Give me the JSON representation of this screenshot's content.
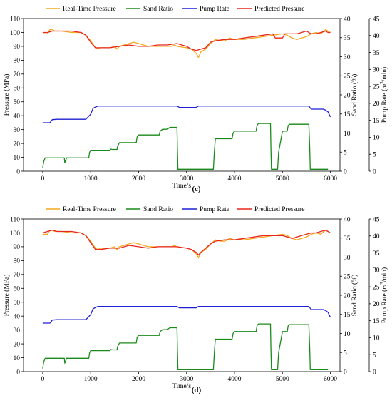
{
  "colors": {
    "real_time_pressure": "#f4a81d",
    "sand_ratio": "#1a8a1a",
    "pump_rate": "#1f1fd6",
    "predicted_pressure": "#e8261c"
  },
  "chart_data": [
    {
      "type": "line",
      "panel_label": "(c)",
      "xlabel": "Time/s",
      "ylabel_left": "Pressure (MPa)",
      "ylabel_right": "Sand Ratio (%)",
      "ylabel_right2_prefix": "Pump Rate (",
      "ylabel_right2_unit": "m",
      "ylabel_right2_sup": "3",
      "ylabel_right2_suffix": "/min)",
      "xlim": [
        -400,
        6200
      ],
      "xticks": [
        0,
        1000,
        2000,
        3000,
        4000,
        5000,
        6000
      ],
      "ylim_left": [
        0,
        110
      ],
      "yticks_left": [
        0,
        10,
        20,
        30,
        40,
        50,
        60,
        70,
        80,
        90,
        100,
        110
      ],
      "ylim_right": [
        0,
        40
      ],
      "yticks_right": [
        0,
        5,
        10,
        15,
        20,
        25,
        30,
        35,
        40
      ],
      "ylim_right2": [
        0,
        45
      ],
      "yticks_right2": [
        0,
        5,
        10,
        15,
        20,
        25,
        30,
        35,
        40,
        45
      ],
      "legend_position": "top",
      "series": [
        {
          "name": "Real-Time Pressure",
          "axis": "left",
          "color_key": "real_time_pressure",
          "x": [
            0,
            100,
            150,
            200,
            250,
            300,
            400,
            600,
            800,
            900,
            1000,
            1100,
            1150,
            1200,
            1400,
            1500,
            1550,
            1600,
            1800,
            1900,
            2000,
            2100,
            2200,
            2300,
            2500,
            2700,
            2750,
            2800,
            3000,
            3100,
            3200,
            3250,
            3300,
            3400,
            3500,
            3600,
            3700,
            3800,
            3900,
            4000,
            4100,
            4200,
            4400,
            4600,
            4800,
            5000,
            5100,
            5200,
            5300,
            5400,
            5500,
            5600,
            5700,
            5800,
            5900,
            5950,
            6000
          ],
          "y": [
            99,
            99,
            102,
            102,
            101,
            101,
            101,
            100,
            100,
            98,
            94,
            89,
            88,
            89,
            89,
            90,
            88,
            90,
            92,
            93,
            92,
            91,
            90,
            90,
            90,
            90,
            91,
            90,
            89,
            88,
            85,
            82,
            86,
            88,
            92,
            95,
            94,
            94,
            96,
            95,
            95,
            95,
            96,
            97,
            98,
            99,
            98,
            96,
            95,
            96,
            97,
            99,
            100,
            99,
            102,
            101,
            100
          ]
        },
        {
          "name": "Predicted Pressure",
          "axis": "left",
          "color_key": "predicted_pressure",
          "x": [
            0,
            100,
            200,
            300,
            400,
            600,
            800,
            900,
            1000,
            1100,
            1200,
            1400,
            1600,
            1800,
            2000,
            2200,
            2400,
            2600,
            2800,
            3000,
            3100,
            3200,
            3300,
            3400,
            3500,
            3600,
            3800,
            4000,
            4200,
            4400,
            4600,
            4800,
            4850,
            5000,
            5050,
            5100,
            5200,
            5300,
            5400,
            5500,
            5600,
            5700,
            5800,
            5900,
            5950,
            6000
          ],
          "y": [
            100,
            100,
            101,
            101,
            101,
            101,
            100,
            98,
            93,
            89,
            89,
            89,
            90,
            91,
            90,
            90,
            91,
            91,
            92,
            90,
            88,
            87,
            88,
            89,
            93,
            94,
            95,
            95,
            96,
            97,
            98,
            99,
            96,
            96,
            99,
            99,
            99,
            99,
            100,
            101,
            99,
            99,
            100,
            101,
            100,
            100
          ]
        },
        {
          "name": "Sand Ratio",
          "axis": "right",
          "color_key": "sand_ratio",
          "x": [
            0,
            20,
            50,
            100,
            450,
            460,
            500,
            550,
            960,
            980,
            1000,
            1400,
            1420,
            1450,
            1550,
            1560,
            1600,
            1950,
            1970,
            2000,
            2430,
            2450,
            2500,
            2600,
            2650,
            2800,
            2810,
            2820,
            3560,
            3580,
            3600,
            3950,
            3970,
            4000,
            4450,
            4470,
            4500,
            4750,
            4760,
            4770,
            4900,
            4920,
            5000,
            5100,
            5120,
            5150,
            5550,
            5570,
            5580,
            5900,
            5950
          ],
          "y": [
            0.8,
            2.5,
            3.5,
            3.5,
            3.5,
            2.2,
            3.5,
            3.5,
            3.5,
            5,
            5.5,
            5.5,
            5.8,
            5.7,
            5.7,
            6.5,
            7.5,
            7.5,
            9,
            9.5,
            9.5,
            10.5,
            11,
            11,
            11.5,
            11.5,
            6,
            0.5,
            0.5,
            5,
            8.5,
            8.5,
            10,
            10.5,
            10.5,
            12,
            12.5,
            12.5,
            6,
            0.5,
            0.5,
            5,
            10.5,
            10.5,
            12,
            12.3,
            12.3,
            6,
            0.5,
            0.5,
            0.5
          ]
        },
        {
          "name": "Pump Rate",
          "axis": "right2",
          "color_key": "pump_rate",
          "x": [
            0,
            150,
            200,
            300,
            900,
            1000,
            1050,
            1100,
            1150,
            2800,
            2850,
            3200,
            3250,
            3400,
            5550,
            5600,
            5850,
            5900,
            5950,
            6000
          ],
          "y": [
            14.3,
            14.3,
            15.2,
            15.3,
            15.3,
            16.8,
            18.5,
            18.9,
            19.2,
            19.2,
            18.8,
            18.8,
            19.2,
            19.2,
            19.2,
            18.3,
            18.3,
            18.0,
            17.5,
            16.0
          ]
        }
      ]
    },
    {
      "type": "line",
      "panel_label": "(d)",
      "xlabel": "Time/s",
      "ylabel_left": "Pressure (MPa)",
      "ylabel_right": "Sand Ratio (%)",
      "ylabel_right2_prefix": "Pump Rate (",
      "ylabel_right2_unit": "m",
      "ylabel_right2_sup": "3",
      "ylabel_right2_suffix": "/min)",
      "xlim": [
        -400,
        6200
      ],
      "xticks": [
        0,
        1000,
        2000,
        3000,
        4000,
        5000,
        6000
      ],
      "ylim_left": [
        0,
        110
      ],
      "yticks_left": [
        0,
        10,
        20,
        30,
        40,
        50,
        60,
        70,
        80,
        90,
        100,
        110
      ],
      "ylim_right": [
        0,
        40
      ],
      "yticks_right": [
        0,
        5,
        10,
        15,
        20,
        25,
        30,
        35,
        40
      ],
      "ylim_right2": [
        0,
        45
      ],
      "yticks_right2": [
        0,
        5,
        10,
        15,
        20,
        25,
        30,
        35,
        40,
        45
      ],
      "legend_position": "top",
      "series": [
        {
          "name": "Real-Time Pressure",
          "axis": "left",
          "color_key": "real_time_pressure",
          "x": [
            0,
            100,
            150,
            200,
            250,
            300,
            400,
            600,
            800,
            900,
            1000,
            1100,
            1150,
            1200,
            1400,
            1500,
            1550,
            1600,
            1800,
            1900,
            2000,
            2100,
            2200,
            2300,
            2500,
            2700,
            2750,
            2800,
            3000,
            3100,
            3200,
            3250,
            3300,
            3400,
            3500,
            3600,
            3700,
            3800,
            3900,
            4000,
            4100,
            4200,
            4400,
            4600,
            4800,
            5000,
            5100,
            5200,
            5300,
            5400,
            5500,
            5600,
            5700,
            5800,
            5900,
            5950,
            6000
          ],
          "y": [
            99,
            99,
            102,
            102,
            101,
            101,
            101,
            100,
            100,
            98,
            94,
            89,
            88,
            89,
            89,
            90,
            88,
            90,
            92,
            93,
            92,
            91,
            90,
            90,
            90,
            90,
            91,
            90,
            89,
            88,
            85,
            82,
            86,
            88,
            92,
            95,
            94,
            94,
            96,
            95,
            95,
            95,
            96,
            97,
            98,
            99,
            98,
            96,
            95,
            96,
            97,
            99,
            100,
            99,
            102,
            101,
            100
          ]
        },
        {
          "name": "Predicted Pressure",
          "axis": "left",
          "color_key": "predicted_pressure",
          "x": [
            0,
            100,
            200,
            300,
            400,
            600,
            800,
            900,
            1000,
            1100,
            1200,
            1400,
            1600,
            1800,
            2000,
            2200,
            2400,
            2600,
            2800,
            3000,
            3100,
            3200,
            3250,
            3300,
            3400,
            3500,
            3600,
            3800,
            4000,
            4200,
            4400,
            4600,
            4800,
            5000,
            5100,
            5200,
            5300,
            5400,
            5500,
            5600,
            5700,
            5800,
            5900,
            5950,
            6000
          ],
          "y": [
            100,
            101,
            102,
            101,
            101,
            101,
            100,
            98,
            93,
            88,
            88,
            89,
            89,
            91,
            90,
            89,
            90,
            90,
            90,
            89,
            88,
            86,
            84,
            86,
            89,
            92,
            94,
            95,
            95,
            96,
            97,
            98,
            98,
            98,
            97,
            96,
            97,
            98,
            99,
            100,
            100,
            101,
            102,
            101,
            100
          ]
        },
        {
          "name": "Sand Ratio",
          "axis": "right",
          "color_key": "sand_ratio",
          "x": [
            0,
            20,
            50,
            100,
            450,
            460,
            500,
            550,
            960,
            980,
            1000,
            1400,
            1420,
            1450,
            1550,
            1560,
            1600,
            1950,
            1970,
            2000,
            2430,
            2450,
            2500,
            2600,
            2650,
            2800,
            2810,
            2820,
            3560,
            3580,
            3600,
            3950,
            3970,
            4000,
            4450,
            4470,
            4500,
            4750,
            4760,
            4770,
            4900,
            4920,
            5000,
            5100,
            5120,
            5150,
            5550,
            5570,
            5580,
            5900,
            5950
          ],
          "y": [
            0.8,
            2.5,
            3.5,
            3.5,
            3.5,
            2.2,
            3.5,
            3.5,
            3.5,
            5,
            5.5,
            5.5,
            5.8,
            5.7,
            5.7,
            6.5,
            7.5,
            7.5,
            9,
            9.5,
            9.5,
            10.5,
            11,
            11,
            11.5,
            11.5,
            6,
            0.5,
            0.5,
            5,
            8.5,
            8.5,
            10,
            10.5,
            10.5,
            12,
            12.5,
            12.5,
            6,
            0.5,
            0.5,
            5,
            10.5,
            10.5,
            12,
            12.3,
            12.3,
            6,
            0.5,
            0.5,
            0.5
          ]
        },
        {
          "name": "Pump Rate",
          "axis": "right2",
          "color_key": "pump_rate",
          "x": [
            0,
            150,
            200,
            300,
            900,
            1000,
            1050,
            1100,
            1150,
            2800,
            2850,
            3200,
            3250,
            3400,
            5550,
            5600,
            5850,
            5900,
            5950,
            6000
          ],
          "y": [
            14.3,
            14.3,
            15.2,
            15.3,
            15.3,
            16.8,
            18.5,
            18.9,
            19.2,
            19.2,
            18.8,
            18.8,
            19.2,
            19.2,
            19.2,
            18.3,
            18.3,
            18.0,
            17.5,
            16.0
          ]
        }
      ]
    }
  ]
}
